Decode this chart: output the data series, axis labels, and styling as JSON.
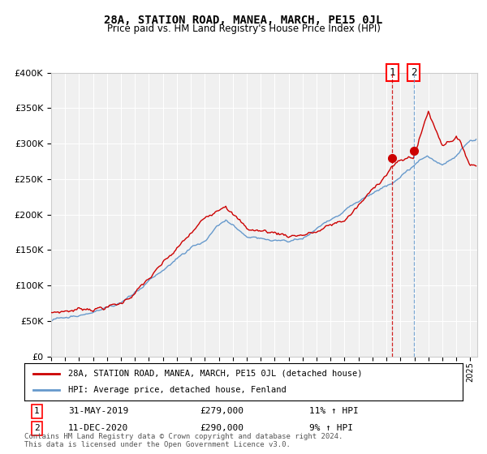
{
  "title": "28A, STATION ROAD, MANEA, MARCH, PE15 0JL",
  "subtitle": "Price paid vs. HM Land Registry's House Price Index (HPI)",
  "legend_line1": "28A, STATION ROAD, MANEA, MARCH, PE15 0JL (detached house)",
  "legend_line2": "HPI: Average price, detached house, Fenland",
  "footnote": "Contains HM Land Registry data © Crown copyright and database right 2024.\nThis data is licensed under the Open Government Licence v3.0.",
  "marker1_date": "31-MAY-2019",
  "marker1_price": "£279,000",
  "marker1_hpi": "11% ↑ HPI",
  "marker2_date": "11-DEC-2020",
  "marker2_price": "£290,000",
  "marker2_hpi": "9% ↑ HPI",
  "red_color": "#cc0000",
  "blue_color": "#6699cc",
  "background_color": "#f0f0f0",
  "ylim": [
    0,
    400000
  ],
  "yticks": [
    0,
    50000,
    100000,
    150000,
    200000,
    250000,
    300000,
    350000,
    400000
  ],
  "x_start_year": 1995,
  "x_end_year": 2025,
  "marker1_x": 2019.42,
  "marker2_x": 2020.95
}
